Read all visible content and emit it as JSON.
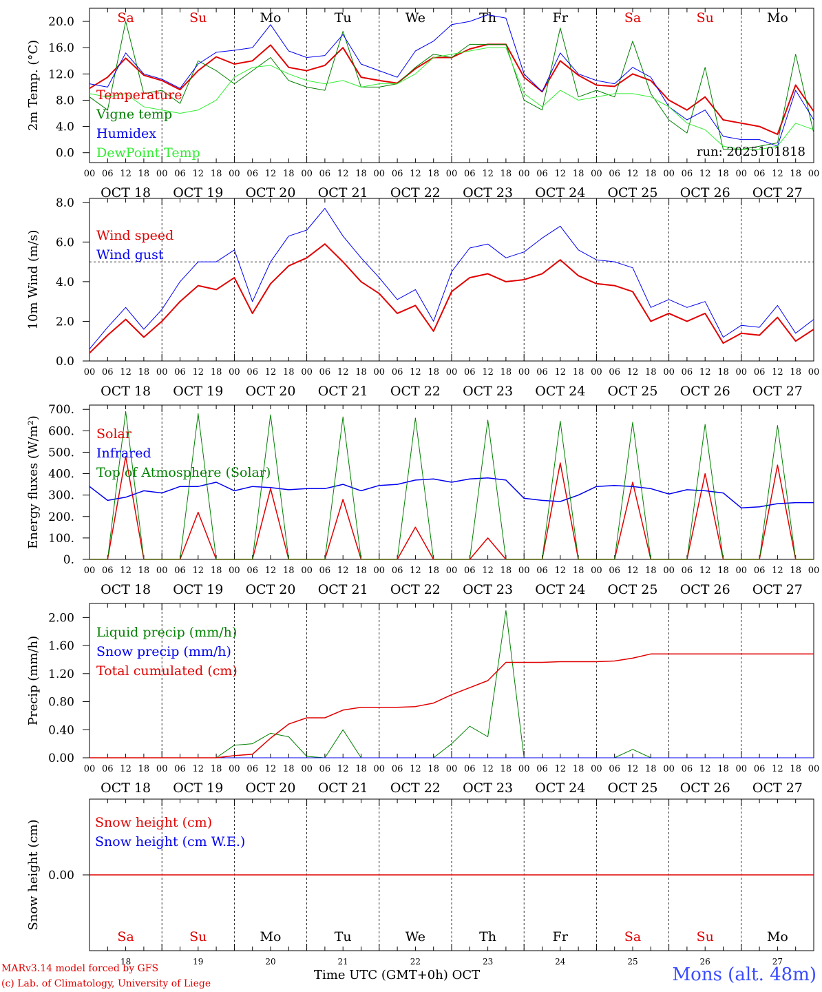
{
  "days": [
    "Sa",
    "Su",
    "Mo",
    "Tu",
    "We",
    "Th",
    "Fr",
    "Sa",
    "Su",
    "Mo"
  ],
  "weekend_days": [
    "Sa",
    "Su"
  ],
  "dates": [
    "OCT 18",
    "OCT 19",
    "OCT 20",
    "OCT 21",
    "OCT 22",
    "OCT 23",
    "OCT 24",
    "OCT 25",
    "OCT 26",
    "OCT 27"
  ],
  "day_numbers": [
    "18",
    "19",
    "20",
    "21",
    "22",
    "23",
    "24",
    "25",
    "26",
    "27"
  ],
  "hour_ticks": [
    "00",
    "06",
    "12",
    "18"
  ],
  "colors": {
    "red": "#e00000",
    "green": "#008000",
    "blue": "#0000ee",
    "light_green": "#33ee33",
    "grid": "#000000"
  },
  "footer": {
    "model": "MARv3.14 model forced by GFS",
    "lab": "(c) Lab. of Climatology, University of Liege",
    "time_axis": "Time UTC (GMT+0h) OCT",
    "station": "Mons (alt. 48m)"
  },
  "chart_data": [
    {
      "type": "line",
      "ylabel": "2m Temp. (°C)",
      "ylim": [
        -1.5,
        22
      ],
      "yticks": [
        "0.0",
        "4.0",
        "8.0",
        "12.0",
        "16.0",
        "20.0"
      ],
      "ytick_values": [
        0,
        4,
        8,
        12,
        16,
        20
      ],
      "annotation": "run: 2025101818",
      "x_hours": [
        0,
        6,
        12,
        18,
        24,
        30,
        36,
        42,
        48,
        54,
        60,
        66,
        72,
        78,
        84,
        90,
        96,
        102,
        108,
        114,
        120,
        126,
        132,
        138,
        144,
        150,
        156,
        162,
        168,
        174,
        180,
        186,
        192,
        198,
        204,
        210,
        216,
        222,
        228,
        234,
        240
      ],
      "series": [
        {
          "name": "Temperature",
          "color": "#e00000",
          "width": 2,
          "values": [
            9.8,
            11.5,
            14.4,
            11.8,
            11.0,
            9.6,
            12.5,
            14.6,
            13.5,
            14.0,
            16.4,
            13.0,
            12.5,
            13.3,
            16.0,
            11.5,
            11.0,
            10.6,
            12.8,
            14.5,
            14.5,
            15.8,
            16.5,
            16.5,
            11.5,
            9.3,
            14.0,
            11.8,
            10.3,
            10.1,
            12.0,
            11.0,
            8.0,
            6.5,
            8.5,
            5.0,
            4.5,
            4.0,
            2.8,
            10.3,
            6.3
          ]
        },
        {
          "name": "Vigne temp",
          "color": "#008000",
          "width": 1,
          "values": [
            8.5,
            6.5,
            20.0,
            9.0,
            9.5,
            7.5,
            14.0,
            12.5,
            10.5,
            12.5,
            14.5,
            11.0,
            10.0,
            9.5,
            18.5,
            10.0,
            10.0,
            10.5,
            13.0,
            15.0,
            14.5,
            16.5,
            16.5,
            16.5,
            8.0,
            6.5,
            19.0,
            8.5,
            9.5,
            8.5,
            17.0,
            9.0,
            5.0,
            3.0,
            13.0,
            0.5,
            0.5,
            1.0,
            1.5,
            15.0,
            3.0
          ]
        },
        {
          "name": "Humidex",
          "color": "#0000ee",
          "width": 1,
          "values": [
            10.5,
            10.0,
            15.2,
            12.0,
            11.2,
            9.8,
            13.5,
            15.3,
            15.6,
            16.0,
            19.5,
            15.5,
            14.5,
            14.8,
            18.0,
            13.5,
            12.5,
            11.5,
            15.5,
            17.0,
            19.5,
            20.0,
            21.0,
            20.5,
            12.0,
            9.3,
            15.2,
            12.0,
            11.0,
            10.5,
            13.0,
            11.5,
            7.0,
            5.0,
            6.5,
            2.5,
            2.0,
            2.0,
            1.0,
            9.5,
            5.0
          ]
        },
        {
          "name": "DewPoint Temp",
          "color": "#33ee33",
          "width": 1,
          "values": [
            9.0,
            8.5,
            9.0,
            7.0,
            6.5,
            6.0,
            6.5,
            8.0,
            11.5,
            13.0,
            13.3,
            12.0,
            11.0,
            10.5,
            11.0,
            10.0,
            10.5,
            10.5,
            12.0,
            14.5,
            15.0,
            15.5,
            16.0,
            16.0,
            9.0,
            7.0,
            9.5,
            8.0,
            8.5,
            9.0,
            9.0,
            8.5,
            7.0,
            4.5,
            3.5,
            1.0,
            0.5,
            0.5,
            1.0,
            4.5,
            3.5
          ]
        }
      ]
    },
    {
      "type": "line",
      "ylabel": "10m Wind (m/s)",
      "ylim": [
        0,
        8.2
      ],
      "yticks": [
        "0.0",
        "2.0",
        "4.0",
        "6.0",
        "8.0"
      ],
      "ytick_values": [
        0,
        2,
        4,
        6,
        8
      ],
      "reference_line": 5.0,
      "x_hours": [
        0,
        6,
        12,
        18,
        24,
        30,
        36,
        42,
        48,
        54,
        60,
        66,
        72,
        78,
        84,
        90,
        96,
        102,
        108,
        114,
        120,
        126,
        132,
        138,
        144,
        150,
        156,
        162,
        168,
        174,
        180,
        186,
        192,
        198,
        204,
        210,
        216,
        222,
        228,
        234,
        240
      ],
      "series": [
        {
          "name": "Wind speed",
          "color": "#e00000",
          "width": 2,
          "values": [
            0.4,
            1.3,
            2.1,
            1.2,
            2.0,
            3.0,
            3.8,
            3.6,
            4.2,
            2.4,
            3.9,
            4.8,
            5.2,
            5.9,
            5.0,
            4.0,
            3.4,
            2.4,
            2.8,
            1.5,
            3.5,
            4.2,
            4.4,
            4.0,
            4.1,
            4.4,
            5.1,
            4.3,
            3.9,
            3.8,
            3.5,
            2.0,
            2.4,
            2.0,
            2.4,
            0.9,
            1.4,
            1.3,
            2.2,
            1.0,
            1.6
          ]
        },
        {
          "name": "Wind gust",
          "color": "#0000ee",
          "width": 1,
          "values": [
            0.6,
            1.7,
            2.7,
            1.6,
            2.6,
            4.0,
            5.0,
            5.0,
            5.6,
            3.0,
            5.0,
            6.3,
            6.6,
            7.7,
            6.3,
            5.2,
            4.2,
            3.1,
            3.6,
            2.0,
            4.5,
            5.7,
            5.9,
            5.2,
            5.5,
            6.2,
            6.8,
            5.6,
            5.1,
            5.0,
            4.7,
            2.7,
            3.1,
            2.7,
            3.0,
            1.2,
            1.8,
            1.7,
            2.8,
            1.4,
            2.1
          ]
        }
      ]
    },
    {
      "type": "line",
      "ylabel": "Energy fluxes (W/m²)",
      "ylim": [
        0,
        720
      ],
      "yticks": [
        "0.",
        "100.",
        "200.",
        "300.",
        "400.",
        "500.",
        "600.",
        "700."
      ],
      "ytick_values": [
        0,
        100,
        200,
        300,
        400,
        500,
        600,
        700
      ],
      "x_hours": [
        0,
        6,
        12,
        18,
        24,
        30,
        36,
        42,
        48,
        54,
        60,
        66,
        72,
        78,
        84,
        90,
        96,
        102,
        108,
        114,
        120,
        126,
        132,
        138,
        144,
        150,
        156,
        162,
        168,
        174,
        180,
        186,
        192,
        198,
        204,
        210,
        216,
        222,
        228,
        234,
        240
      ],
      "series": [
        {
          "name": "Solar",
          "color": "#e00000",
          "width": 1.5,
          "values": [
            0,
            0,
            480,
            0,
            0,
            0,
            220,
            0,
            0,
            0,
            330,
            0,
            0,
            0,
            280,
            0,
            0,
            0,
            150,
            0,
            0,
            0,
            100,
            0,
            0,
            0,
            450,
            0,
            0,
            0,
            360,
            0,
            0,
            0,
            400,
            0,
            0,
            0,
            440,
            0,
            0
          ]
        },
        {
          "name": "Infrared",
          "color": "#0000ee",
          "width": 1.5,
          "values": [
            340,
            275,
            290,
            320,
            310,
            340,
            340,
            360,
            320,
            340,
            335,
            325,
            330,
            330,
            350,
            320,
            345,
            350,
            370,
            375,
            360,
            375,
            380,
            370,
            285,
            275,
            270,
            300,
            340,
            345,
            340,
            330,
            305,
            325,
            320,
            310,
            240,
            245,
            260,
            265,
            265
          ]
        },
        {
          "name": "Top of Atmosphere (Solar)",
          "color": "#008000",
          "width": 1,
          "values": [
            0,
            0,
            690,
            0,
            0,
            0,
            680,
            0,
            0,
            0,
            675,
            0,
            0,
            0,
            665,
            0,
            0,
            0,
            660,
            0,
            0,
            0,
            650,
            0,
            0,
            0,
            645,
            0,
            0,
            0,
            640,
            0,
            0,
            0,
            630,
            0,
            0,
            0,
            625,
            0,
            0
          ]
        }
      ]
    },
    {
      "type": "line",
      "ylabel": "Precip (mm/h)",
      "ylim": [
        0,
        2.2
      ],
      "yticks": [
        "0.00",
        "0.40",
        "0.80",
        "1.20",
        "1.60",
        "2.00"
      ],
      "ytick_values": [
        0,
        0.4,
        0.8,
        1.2,
        1.6,
        2.0
      ],
      "x_hours": [
        0,
        6,
        12,
        18,
        24,
        30,
        36,
        42,
        48,
        54,
        60,
        66,
        72,
        78,
        84,
        90,
        96,
        102,
        108,
        114,
        120,
        126,
        132,
        138,
        144,
        150,
        156,
        162,
        168,
        174,
        180,
        186,
        192,
        198,
        204,
        210,
        216,
        222,
        228,
        234,
        240
      ],
      "series": [
        {
          "name": "Liquid precip (mm/h)",
          "color": "#008000",
          "width": 1,
          "values": [
            0,
            0,
            0,
            0,
            0,
            0,
            0,
            0,
            0.18,
            0.2,
            0.35,
            0.3,
            0.02,
            0,
            0.4,
            0,
            0,
            0,
            0,
            0,
            0.2,
            0.45,
            0.3,
            2.1,
            0,
            0,
            0,
            0,
            0,
            0,
            0.12,
            0,
            0,
            0,
            0,
            0,
            0,
            0,
            0,
            0,
            0
          ]
        },
        {
          "name": "Snow precip (mm/h)",
          "color": "#0000ee",
          "width": 1,
          "values": [
            0,
            0,
            0,
            0,
            0,
            0,
            0,
            0,
            0,
            0,
            0,
            0,
            0,
            0,
            0,
            0,
            0,
            0,
            0,
            0,
            0,
            0,
            0,
            0,
            0,
            0,
            0,
            0,
            0,
            0,
            0,
            0,
            0,
            0,
            0,
            0,
            0,
            0,
            0,
            0,
            0
          ]
        },
        {
          "name": "Total cumulated (cm)",
          "color": "#e00000",
          "width": 1.5,
          "values": [
            0,
            0,
            0,
            0,
            0,
            0,
            0,
            0,
            0.03,
            0.05,
            0.28,
            0.48,
            0.57,
            0.57,
            0.68,
            0.72,
            0.72,
            0.72,
            0.73,
            0.78,
            0.9,
            1.0,
            1.1,
            1.36,
            1.36,
            1.36,
            1.37,
            1.37,
            1.37,
            1.38,
            1.42,
            1.48,
            1.48,
            1.48,
            1.48,
            1.48,
            1.48,
            1.48,
            1.48,
            1.48,
            1.48
          ]
        }
      ]
    },
    {
      "type": "line",
      "ylabel": "Snow height (cm)",
      "ylim": [
        -1,
        1
      ],
      "yticks": [
        "0.00"
      ],
      "ytick_values": [
        0
      ],
      "x_hours": [
        0,
        240
      ],
      "series": [
        {
          "name": "Snow height (cm)",
          "color": "#e00000",
          "width": 1.5,
          "values": [
            0,
            0
          ]
        },
        {
          "name": "Snow height (cm W.E.)",
          "color": "#0000ee",
          "width": 0,
          "values": [
            0,
            0
          ]
        }
      ]
    }
  ]
}
